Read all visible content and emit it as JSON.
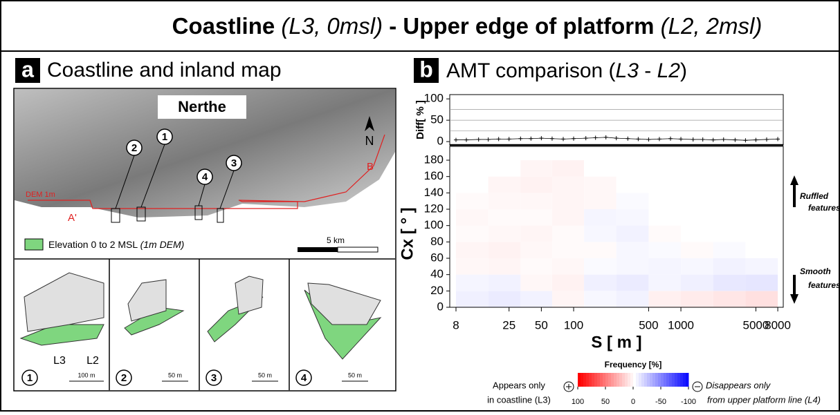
{
  "title": {
    "parts": [
      "Coastline",
      "(L3, 0msl)",
      "- Upper edge of platform",
      "(L2, 2msl)"
    ]
  },
  "panel_a": {
    "letter": "a",
    "title": "Coastline and inland map",
    "map": {
      "name": "Nerthe",
      "north": "N",
      "sites": [
        "1",
        "2",
        "3",
        "4"
      ],
      "dem": "DEM 1m",
      "point_a": "A'",
      "point_b": "B",
      "legend": "Elevation 0 to 2 MSL",
      "legend_note": "(1m DEM)",
      "scale": "5 km"
    },
    "insets": [
      {
        "id": "1",
        "scale": "100 m"
      },
      {
        "id": "2",
        "scale": "50 m"
      },
      {
        "id": "3",
        "scale": "50 m"
      },
      {
        "id": "4",
        "scale": "50 m"
      }
    ],
    "line_labels": [
      "L3",
      "L2"
    ]
  },
  "panel_b": {
    "letter": "b",
    "title_parts": [
      "AMT comparison (",
      "L3",
      " - ",
      "L2",
      ")"
    ],
    "ruffled": [
      "Ruffled",
      "features"
    ],
    "smooth": [
      "Smooth",
      "features"
    ],
    "left_note": [
      "Appears only",
      "in coastline (L3)"
    ],
    "right_note": [
      "Disappears only",
      "from upper platform line (L4)"
    ]
  },
  "chart_data": {
    "type": "heatmap",
    "xlabel": "S [ m ]",
    "ylabel": "Cx [ ° ]",
    "diff_label": "Diff[ % ]",
    "log_x": true,
    "xlim": [
      7,
      9000
    ],
    "xticks": [
      8,
      25,
      50,
      100,
      500,
      1000,
      5000,
      8000
    ],
    "ylim": [
      0,
      180
    ],
    "yticks": [
      0,
      20,
      40,
      60,
      80,
      100,
      120,
      140,
      160,
      180
    ],
    "diff": {
      "x": [
        8,
        10,
        13,
        16,
        20,
        25,
        32,
        40,
        50,
        63,
        80,
        100,
        130,
        160,
        200,
        250,
        320,
        400,
        500,
        630,
        800,
        1000,
        1300,
        1600,
        2000,
        2500,
        3200,
        4000,
        5000,
        6300,
        8000
      ],
      "values": [
        4,
        4,
        5,
        5,
        6,
        6,
        7,
        7,
        8,
        7,
        6,
        7,
        8,
        9,
        10,
        8,
        7,
        6,
        5,
        6,
        7,
        6,
        5,
        5,
        4,
        5,
        4,
        3,
        4,
        5,
        6
      ],
      "ylim": [
        -8,
        110
      ],
      "yticks": [
        0,
        50,
        100
      ],
      "grid": [
        25,
        50,
        75
      ],
      "color": "#000000"
    },
    "xbins": [
      8,
      16,
      32,
      63,
      125,
      250,
      500,
      1000,
      2000,
      4000,
      8000
    ],
    "ybins": [
      0,
      20,
      40,
      60,
      80,
      100,
      120,
      140,
      160,
      180
    ],
    "values": [
      [
        -6,
        -8,
        -5,
        4,
        -3,
        -5,
        6,
        8,
        10,
        12
      ],
      [
        -4,
        -5,
        3,
        5,
        -6,
        -8,
        -4,
        -6,
        -9,
        -10
      ],
      [
        3,
        4,
        2,
        3,
        -2,
        -3,
        -4,
        -3,
        -5,
        -4
      ],
      [
        4,
        5,
        3,
        2,
        2,
        -3,
        -2,
        2,
        -2,
        0
      ],
      [
        2,
        3,
        4,
        2,
        -3,
        -5,
        2,
        0,
        0,
        0
      ],
      [
        3,
        2,
        2,
        4,
        -4,
        -3,
        0,
        0,
        0,
        0
      ],
      [
        2,
        3,
        3,
        4,
        3,
        -2,
        0,
        0,
        0,
        0
      ],
      [
        0,
        4,
        5,
        4,
        3,
        0,
        0,
        0,
        0,
        0
      ],
      [
        0,
        0,
        4,
        5,
        0,
        0,
        0,
        0,
        0,
        0
      ]
    ],
    "colorbar": {
      "title": "Frequency [%]",
      "clim": [
        100,
        -100
      ],
      "ticks": [
        100,
        50,
        0,
        -50,
        -100
      ],
      "low_color": "#0000ff",
      "high_color": "#ff0000"
    }
  }
}
